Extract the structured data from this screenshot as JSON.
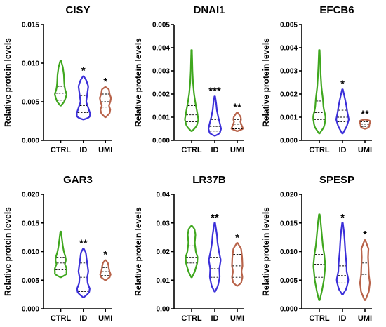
{
  "chart_data": [
    {
      "type": "violin",
      "title": "CISY",
      "ylabel": "Relative protein levels",
      "ylim": [
        0,
        0.015
      ],
      "yticks": [
        "0.000",
        "0.005",
        "0.010",
        "0.015"
      ],
      "categories": [
        "CTRL",
        "ID",
        "UMI"
      ],
      "colors": [
        "#3fa71e",
        "#3b2fd9",
        "#b8634a"
      ],
      "series": [
        {
          "min": 0.0045,
          "max": 0.0103,
          "q1": 0.0052,
          "median": 0.0061,
          "q3": 0.007,
          "density": [
            [
              0.0045,
              0.05
            ],
            [
              0.005,
              0.5
            ],
            [
              0.0055,
              0.7
            ],
            [
              0.006,
              0.85
            ],
            [
              0.0065,
              0.65
            ],
            [
              0.007,
              0.55
            ],
            [
              0.0075,
              0.5
            ],
            [
              0.0085,
              0.45
            ],
            [
              0.0095,
              0.3
            ],
            [
              0.0103,
              0.05
            ]
          ]
        },
        {
          "min": 0.0027,
          "max": 0.0083,
          "q1": 0.0036,
          "median": 0.0045,
          "q3": 0.0058,
          "sig": "*",
          "density": [
            [
              0.0027,
              0.05
            ],
            [
              0.003,
              0.9
            ],
            [
              0.0035,
              0.95
            ],
            [
              0.0042,
              0.7
            ],
            [
              0.005,
              0.4
            ],
            [
              0.006,
              0.55
            ],
            [
              0.007,
              0.7
            ],
            [
              0.0078,
              0.4
            ],
            [
              0.0083,
              0.05
            ]
          ]
        },
        {
          "min": 0.003,
          "max": 0.0069,
          "q1": 0.0043,
          "median": 0.005,
          "q3": 0.006,
          "sig": "*",
          "density": [
            [
              0.003,
              0.05
            ],
            [
              0.0035,
              0.6
            ],
            [
              0.004,
              0.7
            ],
            [
              0.0045,
              0.5
            ],
            [
              0.005,
              0.7
            ],
            [
              0.0055,
              0.8
            ],
            [
              0.006,
              0.6
            ],
            [
              0.0066,
              0.5
            ],
            [
              0.0069,
              0.05
            ]
          ]
        }
      ]
    },
    {
      "type": "violin",
      "title": "DNAI1",
      "ylabel": "Relative protein levels",
      "ylim": [
        0,
        0.005
      ],
      "yticks": [
        "0.000",
        "0.001",
        "0.002",
        "0.003",
        "0.004",
        "0.005"
      ],
      "categories": [
        "CTRL",
        "ID",
        "UMI"
      ],
      "colors": [
        "#3fa71e",
        "#3b2fd9",
        "#b8634a"
      ],
      "series": [
        {
          "min": 0.0004,
          "max": 0.0039,
          "q1": 0.0008,
          "median": 0.0011,
          "q3": 0.0015,
          "density": [
            [
              0.0004,
              0.05
            ],
            [
              0.0006,
              0.7
            ],
            [
              0.0009,
              0.95
            ],
            [
              0.0012,
              0.8
            ],
            [
              0.0016,
              0.55
            ],
            [
              0.002,
              0.35
            ],
            [
              0.0025,
              0.2
            ],
            [
              0.003,
              0.12
            ],
            [
              0.0035,
              0.08
            ],
            [
              0.0039,
              0.04
            ]
          ]
        },
        {
          "min": 0.0002,
          "max": 0.0019,
          "q1": 0.0004,
          "median": 0.0006,
          "q3": 0.0009,
          "sig": "***",
          "density": [
            [
              0.0002,
              0.05
            ],
            [
              0.0003,
              0.7
            ],
            [
              0.0005,
              0.9
            ],
            [
              0.0007,
              0.75
            ],
            [
              0.001,
              0.5
            ],
            [
              0.0013,
              0.3
            ],
            [
              0.0016,
              0.2
            ],
            [
              0.0019,
              0.05
            ]
          ]
        },
        {
          "min": 0.0004,
          "max": 0.0012,
          "q1": 0.0005,
          "median": 0.0007,
          "q3": 0.0009,
          "sig": "**",
          "density": [
            [
              0.0004,
              0.05
            ],
            [
              0.0005,
              0.85
            ],
            [
              0.0006,
              0.7
            ],
            [
              0.0008,
              0.45
            ],
            [
              0.0009,
              0.55
            ],
            [
              0.001,
              0.5
            ],
            [
              0.0011,
              0.3
            ],
            [
              0.0012,
              0.05
            ]
          ]
        }
      ]
    },
    {
      "type": "violin",
      "title": "EFCB6",
      "ylabel": "Relative protein levels",
      "ylim": [
        0,
        0.005
      ],
      "yticks": [
        "0.000",
        "0.001",
        "0.002",
        "0.003",
        "0.004",
        "0.005"
      ],
      "categories": [
        "CTRL",
        "ID",
        "UMI"
      ],
      "colors": [
        "#3fa71e",
        "#3b2fd9",
        "#b8634a"
      ],
      "series": [
        {
          "min": 0.0003,
          "max": 0.0039,
          "q1": 0.0009,
          "median": 0.0012,
          "q3": 0.0017,
          "density": [
            [
              0.0003,
              0.05
            ],
            [
              0.0006,
              0.7
            ],
            [
              0.001,
              0.9
            ],
            [
              0.0014,
              0.6
            ],
            [
              0.0018,
              0.5
            ],
            [
              0.0023,
              0.3
            ],
            [
              0.0028,
              0.2
            ],
            [
              0.0033,
              0.12
            ],
            [
              0.0039,
              0.05
            ]
          ]
        },
        {
          "min": 0.0003,
          "max": 0.0022,
          "q1": 0.0008,
          "median": 0.001,
          "q3": 0.0013,
          "sig": "*",
          "density": [
            [
              0.0003,
              0.05
            ],
            [
              0.0006,
              0.6
            ],
            [
              0.0009,
              0.9
            ],
            [
              0.0012,
              0.7
            ],
            [
              0.0015,
              0.55
            ],
            [
              0.0018,
              0.35
            ],
            [
              0.002,
              0.2
            ],
            [
              0.0022,
              0.05
            ]
          ]
        },
        {
          "min": 0.0005,
          "max": 0.0009,
          "q1": 0.0006,
          "median": 0.0007,
          "q3": 0.0008,
          "sig": "**",
          "density": [
            [
              0.0005,
              0.05
            ],
            [
              0.00055,
              0.5
            ],
            [
              0.0006,
              0.6
            ],
            [
              0.0007,
              0.65
            ],
            [
              0.0008,
              0.75
            ],
            [
              0.00085,
              0.7
            ],
            [
              0.0009,
              0.05
            ]
          ]
        }
      ]
    },
    {
      "type": "violin",
      "title": "GAR3",
      "ylabel": "Relative protein levels",
      "ylim": [
        0,
        0.02
      ],
      "yticks": [
        "0.000",
        "0.005",
        "0.010",
        "0.015",
        "0.020"
      ],
      "categories": [
        "CTRL",
        "ID",
        "UMI"
      ],
      "colors": [
        "#3fa71e",
        "#3b2fd9",
        "#b8634a"
      ],
      "series": [
        {
          "min": 0.0055,
          "max": 0.0135,
          "q1": 0.0068,
          "median": 0.008,
          "q3": 0.009,
          "density": [
            [
              0.0055,
              0.05
            ],
            [
              0.006,
              0.8
            ],
            [
              0.007,
              0.85
            ],
            [
              0.0078,
              0.6
            ],
            [
              0.0085,
              0.75
            ],
            [
              0.0092,
              0.65
            ],
            [
              0.01,
              0.45
            ],
            [
              0.011,
              0.3
            ],
            [
              0.012,
              0.2
            ],
            [
              0.0135,
              0.05
            ]
          ]
        },
        {
          "min": 0.002,
          "max": 0.0105,
          "q1": 0.003,
          "median": 0.0055,
          "q3": 0.008,
          "sig": "**",
          "density": [
            [
              0.002,
              0.05
            ],
            [
              0.0028,
              0.8
            ],
            [
              0.0035,
              0.9
            ],
            [
              0.0045,
              0.6
            ],
            [
              0.0055,
              0.55
            ],
            [
              0.0065,
              0.7
            ],
            [
              0.0075,
              0.6
            ],
            [
              0.0088,
              0.45
            ],
            [
              0.0098,
              0.35
            ],
            [
              0.0105,
              0.05
            ]
          ]
        },
        {
          "min": 0.005,
          "max": 0.0085,
          "q1": 0.0058,
          "median": 0.0065,
          "q3": 0.0072,
          "sig": "*",
          "density": [
            [
              0.005,
              0.05
            ],
            [
              0.0055,
              0.6
            ],
            [
              0.006,
              0.75
            ],
            [
              0.0065,
              0.6
            ],
            [
              0.007,
              0.5
            ],
            [
              0.0075,
              0.45
            ],
            [
              0.008,
              0.35
            ],
            [
              0.0085,
              0.05
            ]
          ]
        }
      ]
    },
    {
      "type": "violin",
      "title": "LR37B",
      "ylabel": "Relative protein levels",
      "ylim": [
        0,
        0.04
      ],
      "yticks": [
        "0.00",
        "0.01",
        "0.02",
        "0.03",
        "0.04"
      ],
      "categories": [
        "CTRL",
        "ID",
        "UMI"
      ],
      "colors": [
        "#3fa71e",
        "#3b2fd9",
        "#b8634a"
      ],
      "series": [
        {
          "min": 0.011,
          "max": 0.029,
          "q1": 0.016,
          "median": 0.018,
          "q3": 0.022,
          "density": [
            [
              0.011,
              0.05
            ],
            [
              0.013,
              0.45
            ],
            [
              0.016,
              0.8
            ],
            [
              0.018,
              0.85
            ],
            [
              0.02,
              0.6
            ],
            [
              0.023,
              0.45
            ],
            [
              0.026,
              0.55
            ],
            [
              0.028,
              0.4
            ],
            [
              0.029,
              0.05
            ]
          ]
        },
        {
          "min": 0.006,
          "max": 0.03,
          "q1": 0.011,
          "median": 0.014,
          "q3": 0.018,
          "sig": "**",
          "density": [
            [
              0.006,
              0.05
            ],
            [
              0.008,
              0.45
            ],
            [
              0.011,
              0.7
            ],
            [
              0.014,
              0.65
            ],
            [
              0.017,
              0.85
            ],
            [
              0.02,
              0.6
            ],
            [
              0.023,
              0.4
            ],
            [
              0.026,
              0.3
            ],
            [
              0.03,
              0.05
            ]
          ]
        },
        {
          "min": 0.008,
          "max": 0.023,
          "q1": 0.011,
          "median": 0.015,
          "q3": 0.019,
          "sig": "*",
          "density": [
            [
              0.008,
              0.05
            ],
            [
              0.009,
              0.55
            ],
            [
              0.011,
              0.75
            ],
            [
              0.013,
              0.6
            ],
            [
              0.015,
              0.75
            ],
            [
              0.018,
              0.7
            ],
            [
              0.021,
              0.55
            ],
            [
              0.023,
              0.05
            ]
          ]
        }
      ]
    },
    {
      "type": "violin",
      "title": "SPESP",
      "ylabel": "Relative protein levels",
      "ylim": [
        0,
        0.02
      ],
      "yticks": [
        "0.000",
        "0.005",
        "0.010",
        "0.015",
        "0.020"
      ],
      "categories": [
        "CTRL",
        "ID",
        "UMI"
      ],
      "colors": [
        "#3fa71e",
        "#3b2fd9",
        "#b8634a"
      ],
      "series": [
        {
          "min": 0.0015,
          "max": 0.0165,
          "q1": 0.0055,
          "median": 0.0078,
          "q3": 0.0095,
          "density": [
            [
              0.0015,
              0.05
            ],
            [
              0.003,
              0.35
            ],
            [
              0.005,
              0.65
            ],
            [
              0.0075,
              0.85
            ],
            [
              0.0095,
              0.7
            ],
            [
              0.011,
              0.5
            ],
            [
              0.013,
              0.35
            ],
            [
              0.015,
              0.2
            ],
            [
              0.0165,
              0.05
            ]
          ]
        },
        {
          "min": 0.0025,
          "max": 0.015,
          "q1": 0.0045,
          "median": 0.0058,
          "q3": 0.0075,
          "sig": "*",
          "density": [
            [
              0.0025,
              0.05
            ],
            [
              0.0035,
              0.55
            ],
            [
              0.005,
              0.85
            ],
            [
              0.0065,
              0.6
            ],
            [
              0.008,
              0.55
            ],
            [
              0.01,
              0.4
            ],
            [
              0.012,
              0.3
            ],
            [
              0.0135,
              0.2
            ],
            [
              0.015,
              0.05
            ]
          ]
        },
        {
          "min": 0.0015,
          "max": 0.012,
          "q1": 0.004,
          "median": 0.006,
          "q3": 0.008,
          "sig": "*",
          "density": [
            [
              0.0015,
              0.05
            ],
            [
              0.003,
              0.55
            ],
            [
              0.0045,
              0.7
            ],
            [
              0.006,
              0.55
            ],
            [
              0.0075,
              0.5
            ],
            [
              0.009,
              0.45
            ],
            [
              0.0105,
              0.5
            ],
            [
              0.012,
              0.05
            ]
          ]
        }
      ]
    }
  ]
}
